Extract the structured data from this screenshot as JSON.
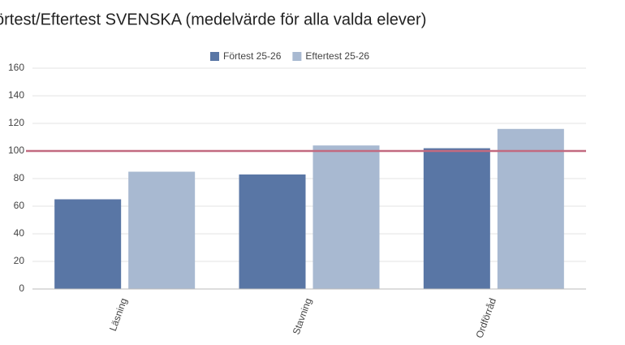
{
  "chart_data": {
    "type": "bar",
    "title": "örtest/Eftertest SVENSKA (medelvärde för alla valda elever)",
    "categories": [
      "Läsning",
      "Stavning",
      "Ordförråd"
    ],
    "series": [
      {
        "name": "Förtest 25-26",
        "color": "#5976a5",
        "values": [
          65,
          83,
          102
        ]
      },
      {
        "name": "Eftertest 25-26",
        "color": "#a8b9d1",
        "values": [
          85,
          104,
          116
        ]
      }
    ],
    "ylim": [
      0,
      160
    ],
    "yticks": [
      0,
      20,
      40,
      60,
      80,
      100,
      120,
      140,
      160
    ],
    "grid": true,
    "reference_line": {
      "value": 100,
      "color": "#c26a80"
    },
    "legend": "top"
  }
}
